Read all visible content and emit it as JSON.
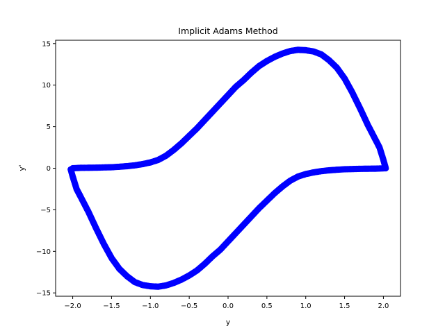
{
  "chart_data": {
    "type": "scatter",
    "title": "Implicit Adams Method",
    "xlabel": "y",
    "ylabel": "y'",
    "xlim": [
      -2.22,
      2.22
    ],
    "ylim": [
      -15.4,
      15.4
    ],
    "xticks": [
      -2.0,
      -1.5,
      -1.0,
      -0.5,
      0.0,
      0.5,
      1.0,
      1.5,
      2.0
    ],
    "xtick_labels": [
      "−2.0",
      "−1.5",
      "−1.0",
      "−0.5",
      "0.0",
      "0.5",
      "1.0",
      "1.5",
      "2.0"
    ],
    "yticks": [
      -15,
      -10,
      -5,
      0,
      5,
      10,
      15
    ],
    "ytick_labels": [
      "−15",
      "−10",
      "−5",
      "0",
      "5",
      "10",
      "15"
    ],
    "grid": false,
    "legend": "none",
    "series": [
      {
        "color": "#0000ff",
        "marker": "o",
        "points": [
          [
            -2.0,
            0.0
          ],
          [
            -1.9,
            0.05
          ],
          [
            -1.8,
            0.06
          ],
          [
            -1.7,
            0.07
          ],
          [
            -1.6,
            0.1
          ],
          [
            -1.5,
            0.12
          ],
          [
            -1.4,
            0.18
          ],
          [
            -1.3,
            0.25
          ],
          [
            -1.2,
            0.35
          ],
          [
            -1.1,
            0.5
          ],
          [
            -1.0,
            0.7
          ],
          [
            -0.9,
            1.0
          ],
          [
            -0.8,
            1.5
          ],
          [
            -0.7,
            2.2
          ],
          [
            -0.6,
            3.0
          ],
          [
            -0.5,
            3.9
          ],
          [
            -0.4,
            4.8
          ],
          [
            -0.3,
            5.8
          ],
          [
            -0.2,
            6.8
          ],
          [
            -0.1,
            7.8
          ],
          [
            0.0,
            8.8
          ],
          [
            0.1,
            9.8
          ],
          [
            0.2,
            10.6
          ],
          [
            0.3,
            11.5
          ],
          [
            0.4,
            12.3
          ],
          [
            0.5,
            12.9
          ],
          [
            0.6,
            13.4
          ],
          [
            0.7,
            13.8
          ],
          [
            0.8,
            14.1
          ],
          [
            0.9,
            14.25
          ],
          [
            1.0,
            14.2
          ],
          [
            1.1,
            14.05
          ],
          [
            1.2,
            13.7
          ],
          [
            1.3,
            13.0
          ],
          [
            1.4,
            12.1
          ],
          [
            1.5,
            10.8
          ],
          [
            1.6,
            9.1
          ],
          [
            1.7,
            7.2
          ],
          [
            1.8,
            5.2
          ],
          [
            1.9,
            3.4
          ],
          [
            1.95,
            2.5
          ],
          [
            2.0,
            1.0
          ],
          [
            2.03,
            0.0
          ],
          [
            1.9,
            -0.05
          ],
          [
            1.8,
            -0.06
          ],
          [
            1.7,
            -0.07
          ],
          [
            1.6,
            -0.1
          ],
          [
            1.5,
            -0.12
          ],
          [
            1.4,
            -0.18
          ],
          [
            1.3,
            -0.25
          ],
          [
            1.2,
            -0.35
          ],
          [
            1.1,
            -0.5
          ],
          [
            1.0,
            -0.7
          ],
          [
            0.9,
            -1.0
          ],
          [
            0.8,
            -1.5
          ],
          [
            0.7,
            -2.2
          ],
          [
            0.6,
            -3.0
          ],
          [
            0.5,
            -3.9
          ],
          [
            0.4,
            -4.8
          ],
          [
            0.3,
            -5.8
          ],
          [
            0.2,
            -6.8
          ],
          [
            0.1,
            -7.8
          ],
          [
            0.0,
            -8.8
          ],
          [
            -0.1,
            -9.8
          ],
          [
            -0.2,
            -10.6
          ],
          [
            -0.3,
            -11.5
          ],
          [
            -0.4,
            -12.3
          ],
          [
            -0.5,
            -12.9
          ],
          [
            -0.6,
            -13.4
          ],
          [
            -0.7,
            -13.8
          ],
          [
            -0.8,
            -14.1
          ],
          [
            -0.9,
            -14.25
          ],
          [
            -1.0,
            -14.2
          ],
          [
            -1.1,
            -14.05
          ],
          [
            -1.2,
            -13.7
          ],
          [
            -1.3,
            -13.0
          ],
          [
            -1.4,
            -12.1
          ],
          [
            -1.5,
            -10.8
          ],
          [
            -1.6,
            -9.1
          ],
          [
            -1.7,
            -7.2
          ],
          [
            -1.8,
            -5.2
          ],
          [
            -1.9,
            -3.4
          ],
          [
            -1.95,
            -2.5
          ],
          [
            -2.0,
            -1.0
          ],
          [
            -2.03,
            0.0
          ]
        ]
      }
    ]
  }
}
